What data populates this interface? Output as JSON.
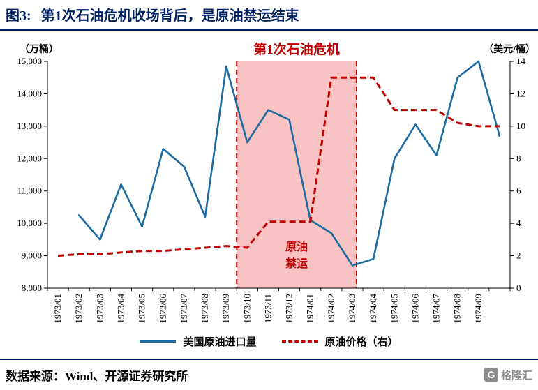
{
  "header": {
    "title_prefix": "图3:",
    "title": "第1次石油危机收场背后，是原油禁运结束"
  },
  "colors": {
    "navy": "#002060",
    "red": "#C00000",
    "blue": "#1C6BA0",
    "pink_fill": "#F8B4B4",
    "gray": "#8C8C8C"
  },
  "chart_data": {
    "type": "line",
    "left_axis": {
      "unit": "（万桶）",
      "min": 8000,
      "max": 15000,
      "tick_labels": [
        "8,000",
        "9,000",
        "10,000",
        "11,000",
        "12,000",
        "13,000",
        "14,000",
        "15,000"
      ]
    },
    "right_axis": {
      "unit": "（美元/桶）",
      "min": 0,
      "max": 14,
      "tick_labels": [
        "0",
        "2",
        "4",
        "6",
        "8",
        "10",
        "12",
        "14"
      ]
    },
    "categories": [
      "1973/01",
      "1973/02",
      "1973/03",
      "1973/04",
      "1973/05",
      "1973/06",
      "1973/07",
      "1973/08",
      "1973/09",
      "1973/10",
      "1973/11",
      "1973/12",
      "1974/01",
      "1974/02",
      "1974/03",
      "1974/04",
      "1974/05",
      "1974/06",
      "1974/07",
      "1974/08",
      "1974/09",
      ""
    ],
    "series": [
      {
        "name": "美国原油进口量",
        "axis": "left",
        "style": "solid",
        "color": "#1C6BA0",
        "values": [
          null,
          10250,
          9500,
          11200,
          9900,
          12300,
          11750,
          10200,
          14850,
          12500,
          13500,
          13200,
          10100,
          9700,
          8700,
          8900,
          12000,
          13050,
          12100,
          14500,
          15000,
          12700
        ]
      },
      {
        "name": "原油价格（右）",
        "axis": "right",
        "style": "dashed",
        "color": "#C00000",
        "values": [
          2.0,
          2.1,
          2.1,
          2.2,
          2.3,
          2.3,
          2.4,
          2.5,
          2.6,
          2.5,
          4.1,
          4.1,
          4.1,
          13,
          13,
          13,
          11,
          11,
          11,
          10.2,
          10,
          10
        ]
      }
    ],
    "annotations": {
      "crisis_label": "第1次石油危机",
      "embargo_label_line1": "原油",
      "embargo_label_line2": "禁运",
      "embargo_region": {
        "start": "1973/10",
        "end": "1974/03",
        "start_index": 8.5,
        "end_index": 14.2,
        "fill": "#F8B4B4",
        "border_color": "#C00000"
      }
    },
    "legend_position": "bottom",
    "grid": false
  },
  "footer": {
    "source": "数据来源：Wind、开源证券研究所",
    "logo_letter": "G",
    "logo_text": "格隆汇"
  }
}
